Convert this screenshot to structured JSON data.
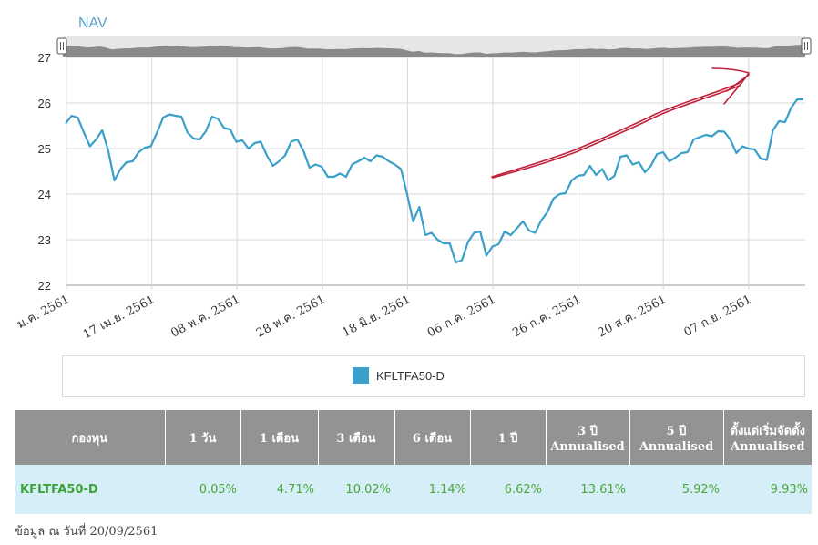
{
  "chart_data": {
    "type": "line",
    "title": "NAV",
    "ylim": [
      22,
      27
    ],
    "yticks": [
      22,
      23,
      24,
      25,
      26,
      27
    ],
    "xticks": [
      "ม.ค. 2561",
      "17 เม.ย. 2561",
      "08 พ.ค. 2561",
      "28 พ.ค. 2561",
      "18 มิ.ย. 2561",
      "06 ก.ค. 2561",
      "26 ก.ค. 2561",
      "20 ส.ค. 2561",
      "07 ก.ย. 2561"
    ],
    "grid": true,
    "legend_placement": "bottom",
    "series": [
      {
        "name": "KFLTFA50-D",
        "color": "#3aa0c9",
        "values": [
          25.55,
          25.72,
          25.68,
          25.35,
          25.05,
          25.2,
          25.4,
          24.95,
          24.3,
          24.55,
          24.7,
          24.72,
          24.92,
          25.02,
          25.05,
          25.35,
          25.68,
          25.75,
          25.72,
          25.7,
          25.35,
          25.22,
          25.2,
          25.38,
          25.7,
          25.65,
          25.45,
          25.42,
          25.15,
          25.18,
          25.0,
          25.12,
          25.15,
          24.85,
          24.62,
          24.72,
          24.85,
          25.15,
          25.2,
          24.95,
          24.58,
          24.65,
          24.6,
          24.38,
          24.38,
          24.45,
          24.38,
          24.65,
          24.72,
          24.8,
          24.72,
          24.85,
          24.82,
          24.72,
          24.65,
          24.55,
          24.0,
          23.4,
          23.72,
          23.1,
          23.15,
          23.0,
          22.92,
          22.92,
          22.5,
          22.55,
          22.95,
          23.15,
          23.18,
          22.65,
          22.85,
          22.9,
          23.18,
          23.1,
          23.25,
          23.4,
          23.2,
          23.15,
          23.42,
          23.6,
          23.9,
          24.0,
          24.02,
          24.3,
          24.4,
          24.42,
          24.62,
          24.42,
          24.55,
          24.3,
          24.4,
          24.82,
          24.85,
          24.65,
          24.7,
          24.48,
          24.62,
          24.88,
          24.92,
          24.72,
          24.8,
          24.9,
          24.92,
          25.2,
          25.25,
          25.3,
          25.27,
          25.38,
          25.37,
          25.2,
          24.9,
          25.05,
          25.0,
          24.98,
          24.78,
          24.75,
          25.4,
          25.6,
          25.58,
          25.9,
          26.08,
          26.08
        ]
      }
    ]
  },
  "legend": {
    "label": "KFLTFA50-D"
  },
  "table": {
    "headers": [
      "กองทุน",
      "1 วัน",
      "1 เดือน",
      "3 เดือน",
      "6 เดือน",
      "1 ปี",
      "3 ปี Annualised",
      "5 ปี Annualised",
      "ตั้งแต่เริ่มจัดตั้ง Annualised"
    ],
    "row": {
      "fund": "KFLTFA50-D",
      "d1": "0.05%",
      "m1": "4.71%",
      "m3": "10.02%",
      "m6": "1.14%",
      "y1": "6.62%",
      "y3": "13.61%",
      "y5": "5.92%",
      "since": "9.93%"
    }
  },
  "as_of": "ข้อมูล ณ วันที่ 20/09/2561"
}
